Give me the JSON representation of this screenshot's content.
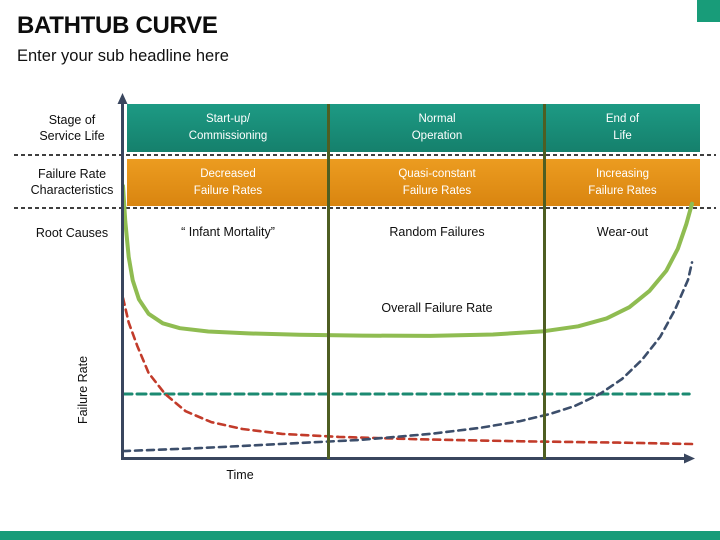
{
  "slide": {
    "title": "BATHTUB CURVE",
    "subtitle": "Enter your sub headline here"
  },
  "rows": {
    "stage": {
      "label_line1": "Stage of",
      "label_line2": "Service Life"
    },
    "rate": {
      "label_line1": "Failure Rate",
      "label_line2": "Characteristics"
    },
    "causes": {
      "label": "Root Causes"
    }
  },
  "phases": [
    {
      "stage_line1": "Start-up/",
      "stage_line2": "Commissioning",
      "rate_line1": "Decreased",
      "rate_line2": "Failure Rates",
      "cause": "“ Infant Mortality”"
    },
    {
      "stage_line1": "Normal",
      "stage_line2": "Operation",
      "rate_line1": "Quasi-constant",
      "rate_line2": "Failure Rates",
      "cause": "Random Failures"
    },
    {
      "stage_line1": "End of",
      "stage_line2": "Life",
      "rate_line1": "Increasing",
      "rate_line2": "Failure Rates",
      "cause": "Wear-out"
    }
  ],
  "colors": {
    "stage_band": "#1B907C",
    "rate_band": "#E28E14",
    "phase_divider": "#4E5E22",
    "axis": "#39465E",
    "footer_accent": "#189C79",
    "overall_curve": "#8FBC51",
    "early_failures_curve": "#C23B2A",
    "wear_out_curve": "#3C4E6B",
    "constant_rate_line": "#1B8A71"
  },
  "chart_data": {
    "type": "line",
    "title": "Bathtub Curve",
    "xlabel": "Time",
    "ylabel": "Failure Rate",
    "annotation": "Overall Failure Rate",
    "axes_numeric": false,
    "x_range_normalized": [
      0,
      1
    ],
    "y_range_normalized": [
      0,
      1
    ],
    "phase_boundaries_x": [
      0,
      0.36,
      0.74,
      1
    ],
    "grid": false,
    "legend": "none",
    "series": [
      {
        "id": "random-failures-constant",
        "name": "Constant (random) failure rate",
        "color": "#1B8A71",
        "style": "dashed",
        "width": 3,
        "dash": "9 5",
        "x": [
          0,
          0.995
        ],
        "y": [
          0.238,
          0.238
        ]
      },
      {
        "id": "early-failures",
        "name": "Early infant-mortality failure rate",
        "color": "#C23B2A",
        "style": "dashed",
        "width": 2.6,
        "dash": "7 5",
        "x": [
          0,
          0.01,
          0.025,
          0.045,
          0.074,
          0.11,
          0.155,
          0.21,
          0.28,
          0.38,
          0.52,
          0.7,
          0.87,
          1.0
        ],
        "y": [
          0.59,
          0.5,
          0.415,
          0.315,
          0.238,
          0.175,
          0.135,
          0.11,
          0.092,
          0.081,
          0.072,
          0.065,
          0.06,
          0.055
        ]
      },
      {
        "id": "wear-out-failures",
        "name": "Wear-out failure rate",
        "color": "#3C4E6B",
        "style": "dashed",
        "width": 2.6,
        "dash": "7 5",
        "x": [
          0,
          0.135,
          0.276,
          0.417,
          0.54,
          0.627,
          0.698,
          0.75,
          0.794,
          0.838,
          0.877,
          0.912,
          0.944,
          0.97,
          0.993,
          1.0
        ],
        "y": [
          0.029,
          0.04,
          0.055,
          0.07,
          0.092,
          0.114,
          0.139,
          0.165,
          0.194,
          0.238,
          0.293,
          0.363,
          0.447,
          0.546,
          0.656,
          0.72
        ]
      },
      {
        "id": "overall-failure-rate",
        "name": "Overall Failure Rate",
        "color": "#8FBC51",
        "style": "solid",
        "width": 4,
        "dash": "",
        "x": [
          0,
          0.004,
          0.01,
          0.017,
          0.028,
          0.045,
          0.07,
          0.1,
          0.15,
          0.22,
          0.31,
          0.42,
          0.54,
          0.65,
          0.74,
          0.8,
          0.85,
          0.89,
          0.925,
          0.955,
          0.975,
          0.99,
          1.0
        ],
        "y": [
          1.0,
          0.87,
          0.74,
          0.655,
          0.585,
          0.532,
          0.497,
          0.479,
          0.467,
          0.46,
          0.455,
          0.452,
          0.451,
          0.456,
          0.468,
          0.486,
          0.515,
          0.556,
          0.615,
          0.69,
          0.77,
          0.86,
          0.935
        ]
      }
    ]
  }
}
